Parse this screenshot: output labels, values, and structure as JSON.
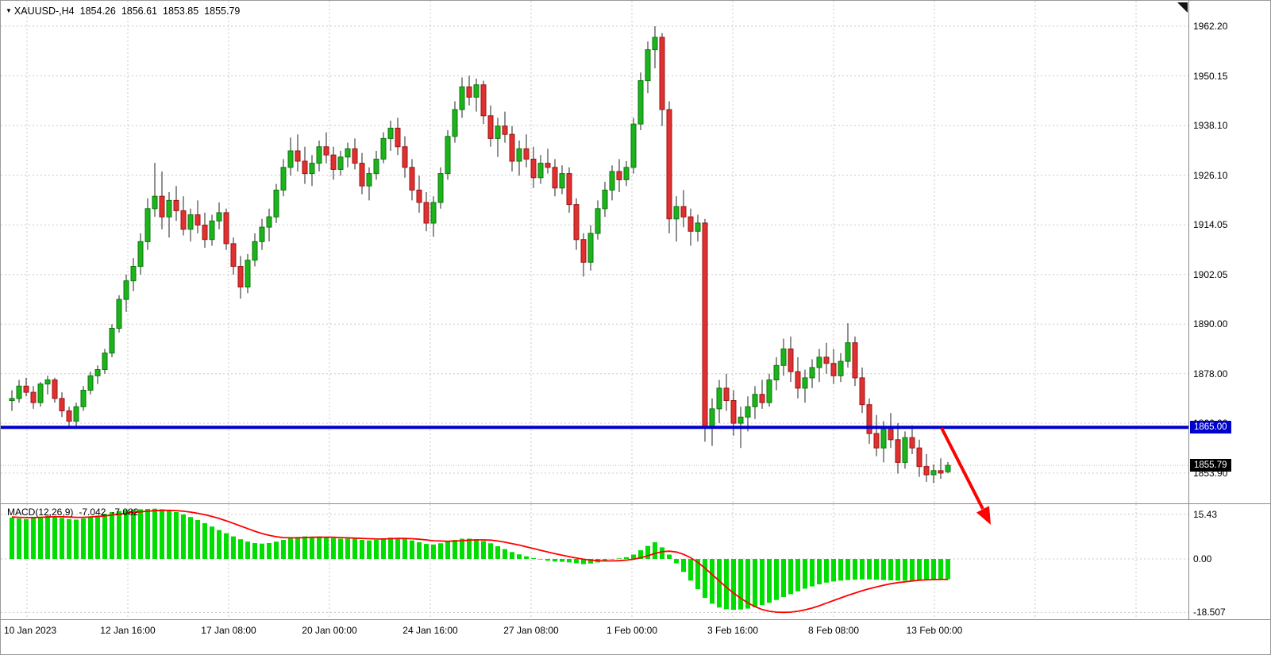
{
  "window": {
    "symbol_period": "XAUUSD-,H4",
    "symbol_marker": "▼",
    "ohlc_readout": {
      "open": "1854.26",
      "high": "1856.61",
      "low": "1853.85",
      "close": "1855.79"
    }
  },
  "colors": {
    "bull": "#1db31d",
    "bull_border": "#0a7a0a",
    "bear": "#e03030",
    "bear_border": "#9c1515",
    "wick": "#222222",
    "grid": "#c9c9c9",
    "macd_bar": "#00dd00",
    "signal_line": "#ff0000",
    "hline": "#0000cc",
    "arrow": "#ff0000",
    "bid_badge_bg": "#000000",
    "hline_badge_bg": "#0000cc"
  },
  "price_axis": {
    "labels": [
      "1962.20",
      "1950.15",
      "1938.10",
      "1926.10",
      "1914.05",
      "1902.05",
      "1890.00",
      "1878.00",
      "1866.00",
      "1853.90"
    ],
    "values": [
      1962.2,
      1950.15,
      1938.1,
      1926.1,
      1914.05,
      1902.05,
      1890.0,
      1878.0,
      1866.0,
      1853.9
    ],
    "hline_badge": "1865.00",
    "bid_badge": "1855.79"
  },
  "time_axis": {
    "labels": [
      "10 Jan 2023",
      "12 Jan 16:00",
      "17 Jan 08:00",
      "20 Jan 00:00",
      "24 Jan 16:00",
      "27 Jan 08:00",
      "1 Feb 00:00",
      "3 Feb 16:00",
      "8 Feb 08:00",
      "13 Feb 00:00"
    ]
  },
  "macd_panel": {
    "label": "MACD(12,26,9)",
    "value_main": "-7.042",
    "value_signal": "-7.082",
    "axis_labels": [
      "15.43",
      "0.00",
      "-18.507"
    ],
    "axis_values": [
      15.43,
      0,
      -18.507
    ]
  },
  "annotations": {
    "horizontal_line": {
      "price": 1865.0,
      "color": "#0000cc"
    },
    "trend_arrow": {
      "direction": "down-right",
      "color": "#ff0000"
    }
  },
  "chart_data": [
    {
      "type": "candlestick",
      "symbol": "XAUUSD-",
      "timeframe": "H4",
      "title": "XAUUSD-,H4 1854.26 1856.61 1853.85 1855.79",
      "x_tick_labels": [
        "10 Jan 2023",
        "12 Jan 16:00",
        "17 Jan 08:00",
        "20 Jan 00:00",
        "24 Jan 16:00",
        "27 Jan 08:00",
        "1 Feb 00:00",
        "3 Feb 16:00",
        "8 Feb 08:00",
        "13 Feb 00:00"
      ],
      "y_axis_ticks": [
        1962.2,
        1950.15,
        1938.1,
        1926.1,
        1914.05,
        1902.05,
        1890.0,
        1878.0,
        1866.0,
        1853.9
      ],
      "ylim": [
        1848.0,
        1968.4
      ],
      "support_line": 1865.0,
      "bid": 1855.79,
      "current_bar": {
        "open": 1854.26,
        "high": 1856.61,
        "low": 1853.85,
        "close": 1855.79
      },
      "ohlc": [
        [
          1871.5,
          1874.0,
          1869.0,
          1872.0
        ],
        [
          1872.0,
          1876.5,
          1871.0,
          1875.0
        ],
        [
          1875.0,
          1877.0,
          1872.5,
          1873.5
        ],
        [
          1873.5,
          1875.0,
          1869.5,
          1871.0
        ],
        [
          1871.0,
          1876.0,
          1870.0,
          1875.5
        ],
        [
          1875.5,
          1877.5,
          1873.0,
          1876.5
        ],
        [
          1876.5,
          1877.0,
          1871.0,
          1872.0
        ],
        [
          1872.0,
          1873.5,
          1867.5,
          1869.0
        ],
        [
          1869.0,
          1870.0,
          1864.8,
          1866.5
        ],
        [
          1866.5,
          1871.0,
          1865.0,
          1870.0
        ],
        [
          1870.0,
          1875.0,
          1869.0,
          1874.0
        ],
        [
          1874.0,
          1878.5,
          1873.0,
          1877.5
        ],
        [
          1877.5,
          1880.0,
          1875.5,
          1879.0
        ],
        [
          1879.0,
          1884.0,
          1878.0,
          1883.0
        ],
        [
          1883.0,
          1890.0,
          1882.0,
          1889.0
        ],
        [
          1889.0,
          1897.0,
          1888.0,
          1896.0
        ],
        [
          1896.0,
          1902.0,
          1893.0,
          1900.5
        ],
        [
          1900.5,
          1906.0,
          1898.0,
          1904.0
        ],
        [
          1904.0,
          1912.0,
          1902.0,
          1910.0
        ],
        [
          1910.0,
          1920.5,
          1908.0,
          1918.0
        ],
        [
          1918.0,
          1929.1,
          1916.0,
          1921.0
        ],
        [
          1921.0,
          1927.0,
          1913.0,
          1916.0
        ],
        [
          1916.0,
          1922.0,
          1911.0,
          1920.0
        ],
        [
          1920.0,
          1923.5,
          1915.0,
          1917.5
        ],
        [
          1917.5,
          1921.0,
          1911.5,
          1913.0
        ],
        [
          1913.0,
          1918.0,
          1910.0,
          1916.5
        ],
        [
          1916.5,
          1920.0,
          1912.0,
          1914.0
        ],
        [
          1914.0,
          1917.0,
          1908.5,
          1910.5
        ],
        [
          1910.5,
          1916.5,
          1909.0,
          1915.0
        ],
        [
          1915.0,
          1919.5,
          1913.0,
          1917.0
        ],
        [
          1917.0,
          1918.0,
          1908.0,
          1909.5
        ],
        [
          1909.5,
          1911.0,
          1902.0,
          1904.0
        ],
        [
          1904.0,
          1906.5,
          1896.2,
          1899.0
        ],
        [
          1899.0,
          1907.0,
          1897.5,
          1905.5
        ],
        [
          1905.5,
          1912.0,
          1904.0,
          1910.0
        ],
        [
          1910.0,
          1915.5,
          1908.0,
          1913.5
        ],
        [
          1913.5,
          1918.0,
          1910.0,
          1916.0
        ],
        [
          1916.0,
          1924.0,
          1914.5,
          1922.5
        ],
        [
          1922.5,
          1930.0,
          1921.0,
          1928.0
        ],
        [
          1928.0,
          1935.2,
          1926.0,
          1932.0
        ],
        [
          1932.0,
          1936.0,
          1927.0,
          1929.5
        ],
        [
          1929.5,
          1933.0,
          1924.0,
          1926.5
        ],
        [
          1926.5,
          1931.0,
          1923.5,
          1929.0
        ],
        [
          1929.0,
          1934.5,
          1927.0,
          1933.0
        ],
        [
          1933.0,
          1936.5,
          1929.0,
          1931.0
        ],
        [
          1931.0,
          1933.0,
          1925.0,
          1927.5
        ],
        [
          1927.5,
          1932.0,
          1926.0,
          1930.5
        ],
        [
          1930.5,
          1934.0,
          1928.0,
          1932.5
        ],
        [
          1932.5,
          1935.0,
          1927.5,
          1929.0
        ],
        [
          1929.0,
          1931.5,
          1921.5,
          1923.5
        ],
        [
          1923.5,
          1928.0,
          1920.0,
          1926.5
        ],
        [
          1926.5,
          1932.0,
          1925.0,
          1930.0
        ],
        [
          1930.0,
          1936.5,
          1929.0,
          1935.0
        ],
        [
          1935.0,
          1939.3,
          1932.0,
          1937.5
        ],
        [
          1937.5,
          1940.0,
          1931.0,
          1933.0
        ],
        [
          1933.0,
          1935.5,
          1925.5,
          1928.0
        ],
        [
          1928.0,
          1930.0,
          1920.0,
          1922.5
        ],
        [
          1922.5,
          1926.0,
          1917.0,
          1919.5
        ],
        [
          1919.5,
          1922.0,
          1912.5,
          1914.5
        ],
        [
          1914.5,
          1921.0,
          1911.2,
          1919.5
        ],
        [
          1919.5,
          1928.0,
          1918.0,
          1926.5
        ],
        [
          1926.5,
          1937.0,
          1925.0,
          1935.5
        ],
        [
          1935.5,
          1944.0,
          1934.0,
          1942.0
        ],
        [
          1942.0,
          1949.8,
          1940.0,
          1947.5
        ],
        [
          1947.5,
          1950.2,
          1943.0,
          1945.0
        ],
        [
          1945.0,
          1949.5,
          1941.5,
          1948.0
        ],
        [
          1948.0,
          1949.0,
          1938.5,
          1940.5
        ],
        [
          1940.5,
          1943.0,
          1933.0,
          1935.0
        ],
        [
          1935.0,
          1940.0,
          1930.5,
          1938.0
        ],
        [
          1938.0,
          1941.5,
          1934.0,
          1936.0
        ],
        [
          1936.0,
          1938.0,
          1927.0,
          1929.5
        ],
        [
          1929.5,
          1934.5,
          1926.0,
          1932.5
        ],
        [
          1932.5,
          1936.0,
          1928.0,
          1930.0
        ],
        [
          1930.0,
          1933.0,
          1923.0,
          1925.5
        ],
        [
          1925.5,
          1931.0,
          1924.0,
          1929.0
        ],
        [
          1929.0,
          1932.5,
          1926.5,
          1928.0
        ],
        [
          1928.0,
          1930.0,
          1921.0,
          1923.0
        ],
        [
          1923.0,
          1928.5,
          1921.5,
          1926.5
        ],
        [
          1926.5,
          1928.0,
          1917.0,
          1919.0
        ],
        [
          1919.0,
          1920.5,
          1908.0,
          1910.5
        ],
        [
          1910.5,
          1912.0,
          1901.5,
          1905.0
        ],
        [
          1905.0,
          1914.0,
          1903.0,
          1912.0
        ],
        [
          1912.0,
          1920.0,
          1910.5,
          1918.0
        ],
        [
          1918.0,
          1924.5,
          1916.0,
          1922.5
        ],
        [
          1922.5,
          1928.5,
          1920.0,
          1927.0
        ],
        [
          1927.0,
          1930.0,
          1922.0,
          1925.0
        ],
        [
          1925.0,
          1929.5,
          1923.5,
          1928.0
        ],
        [
          1928.0,
          1940.0,
          1926.5,
          1938.5
        ],
        [
          1938.5,
          1951.0,
          1937.0,
          1949.0
        ],
        [
          1949.0,
          1958.5,
          1946.0,
          1956.5
        ],
        [
          1956.5,
          1962.2,
          1952.0,
          1959.5
        ],
        [
          1959.5,
          1960.5,
          1938.0,
          1942.0
        ],
        [
          1942.0,
          1944.0,
          1912.0,
          1915.5
        ],
        [
          1915.5,
          1921.0,
          1910.0,
          1918.5
        ],
        [
          1918.5,
          1922.5,
          1913.5,
          1916.0
        ],
        [
          1916.0,
          1918.0,
          1909.0,
          1912.5
        ],
        [
          1912.5,
          1916.5,
          1910.0,
          1914.5
        ],
        [
          1914.5,
          1915.5,
          1861.5,
          1865.0
        ],
        [
          1865.0,
          1872.0,
          1860.5,
          1869.5
        ],
        [
          1869.5,
          1876.5,
          1866.0,
          1874.5
        ],
        [
          1874.5,
          1878.0,
          1869.0,
          1871.5
        ],
        [
          1871.5,
          1874.0,
          1863.0,
          1866.0
        ],
        [
          1866.0,
          1870.0,
          1860.0,
          1867.5
        ],
        [
          1867.5,
          1872.5,
          1864.0,
          1870.0
        ],
        [
          1870.0,
          1875.0,
          1867.0,
          1873.0
        ],
        [
          1873.0,
          1876.5,
          1869.5,
          1871.0
        ],
        [
          1871.0,
          1878.0,
          1870.0,
          1876.5
        ],
        [
          1876.5,
          1882.0,
          1874.0,
          1880.0
        ],
        [
          1880.0,
          1886.5,
          1877.5,
          1884.0
        ],
        [
          1884.0,
          1887.0,
          1876.0,
          1878.5
        ],
        [
          1878.5,
          1882.0,
          1872.0,
          1874.5
        ],
        [
          1874.5,
          1879.0,
          1871.0,
          1877.0
        ],
        [
          1877.0,
          1881.5,
          1874.5,
          1879.5
        ],
        [
          1879.5,
          1884.0,
          1876.0,
          1882.0
        ],
        [
          1882.0,
          1885.5,
          1878.0,
          1880.5
        ],
        [
          1880.5,
          1884.0,
          1875.5,
          1877.5
        ],
        [
          1877.5,
          1883.0,
          1876.0,
          1881.0
        ],
        [
          1881.0,
          1890.2,
          1879.5,
          1885.5
        ],
        [
          1885.5,
          1887.0,
          1875.0,
          1877.0
        ],
        [
          1877.0,
          1879.5,
          1868.5,
          1870.5
        ],
        [
          1870.5,
          1872.0,
          1861.0,
          1863.5
        ],
        [
          1863.5,
          1868.0,
          1858.0,
          1860.0
        ],
        [
          1860.0,
          1866.5,
          1856.5,
          1864.5
        ],
        [
          1864.5,
          1868.5,
          1860.0,
          1862.0
        ],
        [
          1862.0,
          1866.0,
          1853.8,
          1856.5
        ],
        [
          1856.5,
          1864.0,
          1855.0,
          1862.5
        ],
        [
          1862.5,
          1865.5,
          1858.5,
          1860.0
        ],
        [
          1860.0,
          1862.0,
          1853.0,
          1855.5
        ],
        [
          1855.5,
          1858.5,
          1851.8,
          1853.5
        ],
        [
          1853.5,
          1856.0,
          1851.5,
          1854.5
        ],
        [
          1854.5,
          1857.5,
          1852.5,
          1853.9
        ],
        [
          1854.26,
          1856.61,
          1853.85,
          1855.79
        ]
      ]
    },
    {
      "type": "macd",
      "title": "MACD(12,26,9)",
      "params": {
        "fast": 12,
        "slow": 26,
        "signal": 9
      },
      "y_axis_ticks": [
        15.43,
        0.0,
        -18.507
      ],
      "ylim": [
        -20.6,
        19.0
      ],
      "current": {
        "macd": -7.042,
        "signal": -7.082
      },
      "histogram": [
        14.3,
        14.0,
        13.8,
        14.2,
        14.6,
        15.0,
        14.7,
        14.2,
        13.8,
        13.6,
        14.0,
        14.5,
        15.0,
        15.6,
        16.2,
        16.6,
        16.9,
        17.1,
        17.2,
        17.3,
        17.4,
        17.2,
        16.8,
        16.2,
        15.4,
        14.5,
        13.5,
        12.4,
        11.2,
        10.0,
        8.9,
        7.8,
        6.8,
        6.0,
        5.5,
        5.3,
        5.5,
        6.0,
        6.6,
        7.2,
        7.6,
        7.8,
        7.7,
        7.8,
        7.6,
        7.2,
        7.0,
        7.1,
        7.0,
        6.6,
        6.4,
        6.6,
        7.0,
        7.4,
        7.3,
        6.9,
        6.4,
        5.8,
        5.2,
        5.0,
        5.4,
        6.0,
        6.6,
        7.0,
        7.0,
        6.8,
        6.2,
        5.4,
        4.4,
        3.4,
        2.4,
        1.6,
        0.9,
        0.3,
        -0.2,
        -0.6,
        -0.9,
        -1.0,
        -1.2,
        -1.5,
        -1.8,
        -1.6,
        -1.2,
        -0.6,
        -0.2,
        0.2,
        0.6,
        1.5,
        3.0,
        4.5,
        5.8,
        4.0,
        1.5,
        -1.5,
        -4.5,
        -7.5,
        -10.5,
        -13.5,
        -15.5,
        -16.8,
        -17.4,
        -17.6,
        -17.5,
        -17.2,
        -16.7,
        -16.0,
        -15.2,
        -14.2,
        -13.2,
        -12.2,
        -11.2,
        -10.3,
        -9.5,
        -8.8,
        -8.2,
        -7.8,
        -7.5,
        -7.3,
        -7.2,
        -7.1,
        -7.1,
        -7.2,
        -7.3,
        -7.4,
        -7.5,
        -7.5,
        -7.4,
        -7.3,
        -7.2,
        -7.1,
        -7.05,
        -7.042
      ],
      "signal": [
        14.5,
        14.4,
        14.3,
        14.3,
        14.4,
        14.5,
        14.6,
        14.6,
        14.5,
        14.4,
        14.4,
        14.5,
        14.7,
        14.9,
        15.2,
        15.5,
        15.8,
        16.1,
        16.3,
        16.5,
        16.7,
        16.8,
        16.8,
        16.7,
        16.5,
        16.2,
        15.8,
        15.3,
        14.7,
        14.0,
        13.2,
        12.3,
        11.4,
        10.5,
        9.6,
        8.8,
        8.2,
        7.7,
        7.4,
        7.3,
        7.3,
        7.4,
        7.5,
        7.5,
        7.5,
        7.5,
        7.4,
        7.3,
        7.2,
        7.1,
        7.0,
        6.9,
        6.9,
        7.0,
        7.1,
        7.1,
        7.0,
        6.8,
        6.6,
        6.3,
        6.2,
        6.1,
        6.2,
        6.3,
        6.5,
        6.6,
        6.6,
        6.5,
        6.2,
        5.8,
        5.3,
        4.8,
        4.2,
        3.6,
        3.0,
        2.4,
        1.8,
        1.3,
        0.8,
        0.3,
        -0.1,
        -0.4,
        -0.6,
        -0.7,
        -0.7,
        -0.6,
        -0.4,
        -0.1,
        0.4,
        1.1,
        1.9,
        2.5,
        2.7,
        2.4,
        1.6,
        0.4,
        -1.2,
        -3.2,
        -5.4,
        -7.6,
        -9.8,
        -11.8,
        -13.6,
        -15.2,
        -16.5,
        -17.5,
        -18.1,
        -18.4,
        -18.5,
        -18.4,
        -18.1,
        -17.6,
        -17.0,
        -16.2,
        -15.3,
        -14.4,
        -13.5,
        -12.6,
        -11.8,
        -11.0,
        -10.3,
        -9.7,
        -9.1,
        -8.6,
        -8.2,
        -7.9,
        -7.6,
        -7.4,
        -7.25,
        -7.15,
        -7.1,
        -7.082
      ]
    }
  ]
}
